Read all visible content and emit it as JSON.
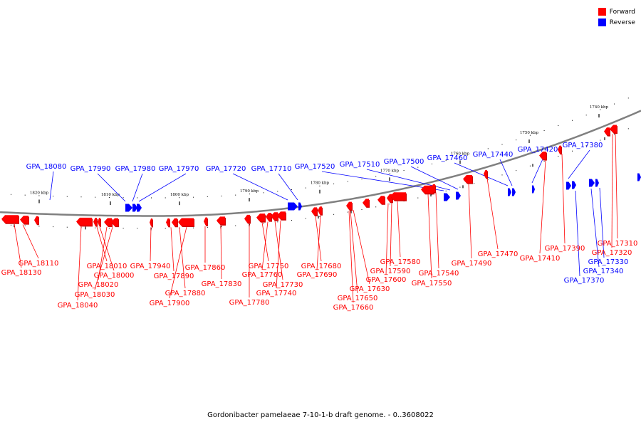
{
  "legend": {
    "forward": {
      "label": "Forward",
      "color": "#ff0000"
    },
    "reverse": {
      "label": "Reverse",
      "color": "#0000ff"
    }
  },
  "caption": "Gordonibacter pamelaeae 7-10-1-b draft genome. - 0..3608022",
  "colors": {
    "backbone": "#808080",
    "forward": "#ff0000",
    "forward_dark": "#cc0000",
    "reverse": "#0000ff"
  },
  "scale": {
    "unit": "kbp",
    "ticks": [
      {
        "label": "1820 kbp"
      },
      {
        "label": "1810 kbp"
      },
      {
        "label": "1800 kbp"
      },
      {
        "label": "1790 kbp"
      },
      {
        "label": "1780 kbp"
      },
      {
        "label": "1770 kbp"
      },
      {
        "label": "1760 kbp"
      },
      {
        "label": "1750 kbp"
      },
      {
        "label": "1740 kbp"
      }
    ]
  },
  "reverse_genes": [
    "GPA_18080",
    "GPA_17990",
    "GPA_17980",
    "GPA_17970",
    "GPA_17720",
    "GPA_17710",
    "GPA_17520",
    "GPA_17510",
    "GPA_17500",
    "GPA_17460",
    "GPA_17440",
    "GPA_17420",
    "GPA_17380",
    "GPA_17370",
    "GPA_17340",
    "GPA_17330"
  ],
  "forward_genes": [
    "GPA_18110",
    "GPA_18130",
    "GPA_18010",
    "GPA_18000",
    "GPA_18020",
    "GPA_18030",
    "GPA_18040",
    "GPA_17940",
    "GPA_17890",
    "GPA_17880",
    "GPA_17900",
    "GPA_17860",
    "GPA_17830",
    "GPA_17750",
    "GPA_17760",
    "GPA_17730",
    "GPA_17740",
    "GPA_17780",
    "GPA_17680",
    "GPA_17690",
    "GPA_17650",
    "GPA_17630",
    "GPA_17660",
    "GPA_17580",
    "GPA_17590",
    "GPA_17600",
    "GPA_17540",
    "GPA_17550",
    "GPA_17490",
    "GPA_17470",
    "GPA_17410",
    "GPA_17390",
    "GPA_17310",
    "GPA_17320"
  ]
}
